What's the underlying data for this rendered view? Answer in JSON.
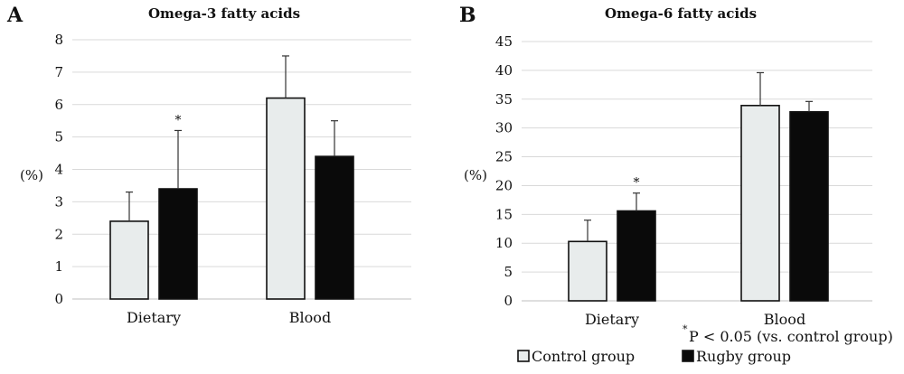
{
  "chart_data": [
    {
      "panel_label": "A",
      "type": "bar",
      "title": "Omega-3 fatty acids",
      "ylabel": "(%)",
      "xlabel": "",
      "categories": [
        "Dietary",
        "Blood"
      ],
      "ylim": [
        0,
        8
      ],
      "yticks": [
        0,
        1,
        2,
        3,
        4,
        5,
        6,
        7,
        8
      ],
      "grid": true,
      "series": [
        {
          "name": "Control group",
          "color": "#e8ecec",
          "values": [
            2.4,
            6.2
          ],
          "error": [
            0.9,
            1.3
          ]
        },
        {
          "name": "Rugby group",
          "color": "#0a0a0a",
          "values": [
            3.4,
            4.4
          ],
          "error": [
            1.8,
            1.1
          ]
        }
      ],
      "annotations": [
        {
          "text": "*",
          "series": "Rugby group",
          "category": "Dietary"
        }
      ]
    },
    {
      "panel_label": "B",
      "type": "bar",
      "title": "Omega-6 fatty acids",
      "ylabel": "(%)",
      "xlabel": "",
      "categories": [
        "Dietary",
        "Blood"
      ],
      "ylim": [
        0,
        45
      ],
      "yticks": [
        0,
        5,
        10,
        15,
        20,
        25,
        30,
        35,
        40,
        45
      ],
      "grid": true,
      "series": [
        {
          "name": "Control group",
          "color": "#e8ecec",
          "values": [
            10.3,
            33.9
          ],
          "error": [
            3.7,
            5.7
          ]
        },
        {
          "name": "Rugby group",
          "color": "#0a0a0a",
          "values": [
            15.6,
            32.8
          ],
          "error": [
            3.1,
            1.8
          ]
        }
      ],
      "annotations": [
        {
          "text": "*",
          "series": "Rugby group",
          "category": "Dietary"
        }
      ]
    }
  ],
  "footnote": {
    "star": "*",
    "text": "P < 0.05 (vs. control group)"
  },
  "legend": {
    "placement": "bottom",
    "items": [
      {
        "label": "Control group",
        "color": "#e8ecec"
      },
      {
        "label": "Rugby group",
        "color": "#0a0a0a"
      }
    ]
  }
}
